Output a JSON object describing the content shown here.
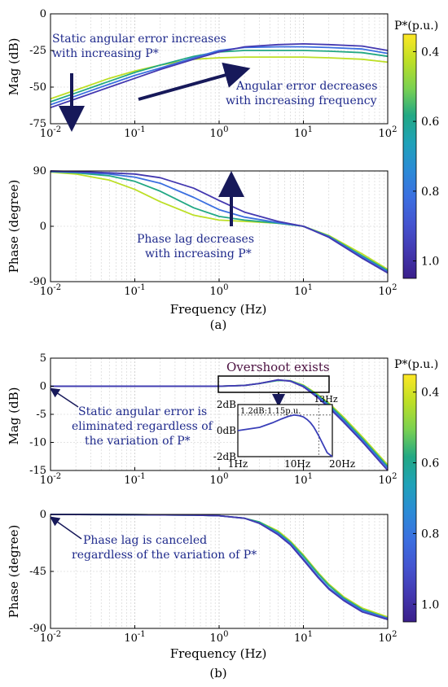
{
  "colors": {
    "annotation_text": "#1f2a8c",
    "arrow": "#17195a",
    "overshoot_text": "#4b1040",
    "colormap": [
      "#fde725",
      "#bddf26",
      "#7ad151",
      "#22a884",
      "#1fa2b8",
      "#2b8bd6",
      "#3b6fe0",
      "#4454d0",
      "#4338b0",
      "#3a1f8a"
    ]
  },
  "figure": {
    "panel_a_tag": "(a)",
    "panel_b_tag": "(b)"
  },
  "chart_data": [
    {
      "id": "a-mag",
      "type": "line",
      "xscale": "log",
      "xlim": [
        0.01,
        100
      ],
      "ylim": [
        -75,
        0
      ],
      "xticks": [
        {
          "v": 0.01,
          "b": "10",
          "e": "-2"
        },
        {
          "v": 0.1,
          "b": "10",
          "e": "-1"
        },
        {
          "v": 1,
          "b": "10",
          "e": "0"
        },
        {
          "v": 10,
          "b": "10",
          "e": "1"
        },
        {
          "v": 100,
          "b": "10",
          "e": "2"
        }
      ],
      "yticks": [
        0,
        -25,
        -50,
        -75
      ],
      "ylabel": "Mag  (dB)",
      "xlabel": "",
      "grid": true,
      "x": [
        0.01,
        0.02,
        0.05,
        0.1,
        0.2,
        0.5,
        1,
        2,
        5,
        10,
        20,
        50,
        100
      ],
      "series": [
        {
          "p": 0.4,
          "values": [
            -58,
            -52,
            -44,
            -39,
            -35,
            -31,
            -30,
            -29.5,
            -29.5,
            -29.5,
            -30,
            -31,
            -33
          ]
        },
        {
          "p": 0.6,
          "values": [
            -60,
            -54,
            -46,
            -40,
            -35,
            -29,
            -26,
            -25,
            -25,
            -25,
            -25.5,
            -26.5,
            -29
          ]
        },
        {
          "p": 0.8,
          "values": [
            -62,
            -56,
            -48,
            -42,
            -37,
            -30,
            -25,
            -23,
            -22.5,
            -22.5,
            -23,
            -24,
            -27
          ]
        },
        {
          "p": 1.0,
          "values": [
            -64,
            -58,
            -50,
            -44,
            -38,
            -31,
            -26,
            -22.5,
            -21,
            -20.5,
            -21,
            -22,
            -25
          ]
        }
      ],
      "annotations": [
        {
          "lines": [
            "Static angular error increases",
            "with increasing P*"
          ]
        },
        {
          "lines": [
            "Angular error decreases",
            "with increasing frequency"
          ]
        }
      ]
    },
    {
      "id": "a-phase",
      "type": "line",
      "xscale": "log",
      "xlim": [
        0.01,
        100
      ],
      "ylim": [
        -90,
        90
      ],
      "xticks": [
        {
          "v": 0.01,
          "b": "10",
          "e": "-2"
        },
        {
          "v": 0.1,
          "b": "10",
          "e": "-1"
        },
        {
          "v": 1,
          "b": "10",
          "e": "0"
        },
        {
          "v": 10,
          "b": "10",
          "e": "1"
        },
        {
          "v": 100,
          "b": "10",
          "e": "2"
        }
      ],
      "yticks": [
        90,
        0,
        -90
      ],
      "ylabel": "Phase  (degree)",
      "xlabel": "Frequency  (Hz)",
      "grid": true,
      "x": [
        0.01,
        0.02,
        0.05,
        0.1,
        0.2,
        0.5,
        1,
        2,
        5,
        10,
        20,
        50,
        100
      ],
      "series": [
        {
          "p": 0.4,
          "values": [
            88,
            85,
            75,
            60,
            40,
            18,
            10,
            8,
            5,
            0,
            -15,
            -45,
            -70
          ]
        },
        {
          "p": 0.6,
          "values": [
            89,
            87,
            82,
            73,
            57,
            30,
            16,
            10,
            5,
            0,
            -16,
            -48,
            -72
          ]
        },
        {
          "p": 0.8,
          "values": [
            89,
            88,
            85,
            80,
            70,
            47,
            27,
            15,
            6,
            0,
            -17,
            -50,
            -74
          ]
        },
        {
          "p": 1.0,
          "values": [
            90,
            89,
            87,
            85,
            79,
            62,
            42,
            23,
            8,
            0,
            -18,
            -52,
            -76
          ]
        }
      ],
      "annotations": [
        {
          "lines": [
            "Phase lag decreases",
            "with increasing P*"
          ]
        }
      ]
    },
    {
      "id": "b-mag",
      "type": "line",
      "xscale": "log",
      "xlim": [
        0.01,
        100
      ],
      "ylim": [
        -15,
        5
      ],
      "xticks": [
        {
          "v": 0.01,
          "b": "10",
          "e": "-2"
        },
        {
          "v": 0.1,
          "b": "10",
          "e": "-1"
        },
        {
          "v": 1,
          "b": "10",
          "e": "0"
        },
        {
          "v": 10,
          "b": "10",
          "e": "1"
        },
        {
          "v": 100,
          "b": "10",
          "e": "2"
        }
      ],
      "yticks": [
        5,
        0,
        -5,
        -10,
        -15
      ],
      "ylabel": "Mag  (dB)",
      "xlabel": "",
      "grid": true,
      "x": [
        0.01,
        0.1,
        1,
        2,
        3,
        5,
        7,
        10,
        15,
        20,
        30,
        50,
        100
      ],
      "series": [
        {
          "p": 0.4,
          "values": [
            0,
            0,
            0,
            0.15,
            0.5,
            1.05,
            1.0,
            0.2,
            -1.5,
            -3.0,
            -5.5,
            -9.0,
            -14.0
          ]
        },
        {
          "p": 0.6,
          "values": [
            0,
            0,
            0,
            0.15,
            0.5,
            1.05,
            0.95,
            0.1,
            -1.7,
            -3.2,
            -5.8,
            -9.3,
            -14.3
          ]
        },
        {
          "p": 0.8,
          "values": [
            0,
            0,
            0,
            0.15,
            0.5,
            1.1,
            0.95,
            0.0,
            -1.9,
            -3.5,
            -6.1,
            -9.6,
            -14.6
          ]
        },
        {
          "p": 1.0,
          "values": [
            0,
            0,
            0,
            0.15,
            0.5,
            1.15,
            0.9,
            -0.1,
            -2.1,
            -3.8,
            -6.4,
            -9.9,
            -15.0
          ]
        }
      ],
      "overshoot_label": "Overshoot exists",
      "inset": {
        "xlim": [
          1,
          20
        ],
        "ylim": [
          -2,
          2
        ],
        "yticks": [
          {
            "v": 2,
            "t": "2dB"
          },
          {
            "v": 0,
            "t": "0dB"
          },
          {
            "v": -2,
            "t": "-2dB"
          }
        ],
        "xticks": [
          {
            "v": 1,
            "t": "1Hz"
          },
          {
            "v": 10,
            "t": "10Hz"
          },
          {
            "v": 20,
            "t": "20Hz"
          }
        ],
        "peak_label": "1.2dB:1.15p.u.",
        "cutoff_label": "13Hz",
        "peak_db": 1.2,
        "cutoff_hz": 13,
        "x": [
          1,
          2,
          3,
          4,
          5,
          6,
          7,
          8,
          9,
          10,
          11,
          12,
          13,
          15,
          17,
          20
        ],
        "values": [
          0,
          0.25,
          0.6,
          0.9,
          1.1,
          1.2,
          1.15,
          1.05,
          0.85,
          0.6,
          0.3,
          -0.05,
          -0.4,
          -1.1,
          -1.7,
          -2.0
        ]
      },
      "annotations": [
        {
          "lines": [
            "Static angular error is",
            "eliminated regardless of",
            "the variation of P*"
          ]
        }
      ]
    },
    {
      "id": "b-phase",
      "type": "line",
      "xscale": "log",
      "xlim": [
        0.01,
        100
      ],
      "ylim": [
        -90,
        0
      ],
      "xticks": [
        {
          "v": 0.01,
          "b": "10",
          "e": "-2"
        },
        {
          "v": 0.1,
          "b": "10",
          "e": "-1"
        },
        {
          "v": 1,
          "b": "10",
          "e": "0"
        },
        {
          "v": 10,
          "b": "10",
          "e": "1"
        },
        {
          "v": 100,
          "b": "10",
          "e": "2"
        }
      ],
      "yticks": [
        0,
        -45,
        -90
      ],
      "ylabel": "Phase  (degree)",
      "xlabel": "Frequency  (Hz)",
      "grid": true,
      "x": [
        0.01,
        0.1,
        0.5,
        1,
        2,
        3,
        5,
        7,
        10,
        15,
        20,
        30,
        50,
        100
      ],
      "series": [
        {
          "p": 0.4,
          "values": [
            0,
            -0.2,
            -0.5,
            -1,
            -3,
            -6,
            -13,
            -21,
            -32,
            -46,
            -55,
            -65,
            -74,
            -81
          ]
        },
        {
          "p": 0.6,
          "values": [
            0,
            -0.2,
            -0.5,
            -1,
            -3,
            -6,
            -14,
            -22,
            -33,
            -47,
            -56,
            -66,
            -75,
            -82
          ]
        },
        {
          "p": 0.8,
          "values": [
            0,
            -0.2,
            -0.5,
            -1,
            -3,
            -7,
            -15,
            -23,
            -35,
            -49,
            -58,
            -67,
            -76,
            -82
          ]
        },
        {
          "p": 1.0,
          "values": [
            0,
            -0.2,
            -0.5,
            -1,
            -3,
            -7,
            -16,
            -24,
            -36,
            -50,
            -59,
            -68,
            -77,
            -83
          ]
        }
      ],
      "annotations": [
        {
          "lines": [
            "Phase lag is canceled",
            "regardless of the variation of P*"
          ]
        }
      ]
    },
    {
      "id": "colorbar",
      "type": "heatmap",
      "label": "P*(p.u.)",
      "range": [
        0.35,
        1.05
      ],
      "ticks": [
        {
          "v": 0.4,
          "t": "0.4"
        },
        {
          "v": 0.6,
          "t": "0.6"
        },
        {
          "v": 0.8,
          "t": "0.8"
        },
        {
          "v": 1.0,
          "t": "1.0"
        }
      ]
    }
  ]
}
